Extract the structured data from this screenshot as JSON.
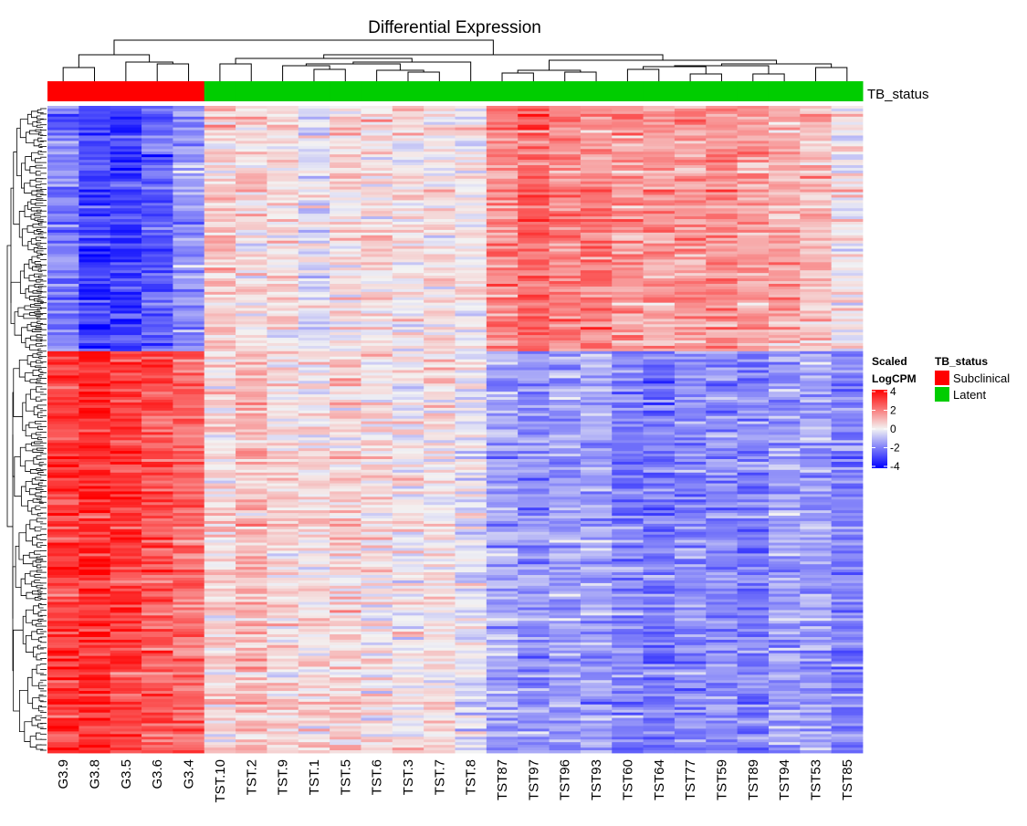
{
  "chart_data": {
    "type": "heatmap",
    "title": "Differential Expression",
    "annotation_label": "TB_status",
    "columns": [
      "G3.9",
      "G3.8",
      "G3.5",
      "G3.6",
      "G3.4",
      "TST.10",
      "TST.2",
      "TST.9",
      "TST.1",
      "TST.5",
      "TST.6",
      "TST.3",
      "TST.7",
      "TST.8",
      "TST87",
      "TST97",
      "TST96",
      "TST93",
      "TST60",
      "TST64",
      "TST77",
      "TST59",
      "TST89",
      "TST94",
      "TST53",
      "TST85"
    ],
    "column_status": [
      "Subclinical",
      "Subclinical",
      "Subclinical",
      "Subclinical",
      "Subclinical",
      "Latent",
      "Latent",
      "Latent",
      "Latent",
      "Latent",
      "Latent",
      "Latent",
      "Latent",
      "Latent",
      "Latent",
      "Latent",
      "Latent",
      "Latent",
      "Latent",
      "Latent",
      "Latent",
      "Latent",
      "Latent",
      "Latent",
      "Latent",
      "Latent"
    ],
    "row_blocks": [
      {
        "share": 0.38,
        "mean_values": [
          -2.0,
          -3.0,
          -3.0,
          -2.5,
          -1.5,
          0.8,
          0.4,
          0.3,
          -0.3,
          0.3,
          0.4,
          0.2,
          0.3,
          0.0,
          1.8,
          2.3,
          1.8,
          1.8,
          1.6,
          1.4,
          1.6,
          1.6,
          1.4,
          1.2,
          0.9,
          0.2
        ]
      },
      {
        "share": 0.62,
        "mean_values": [
          3.0,
          3.3,
          2.9,
          2.6,
          2.3,
          0.4,
          0.9,
          0.5,
          0.3,
          0.5,
          0.3,
          0.1,
          0.3,
          -0.2,
          -1.2,
          -1.6,
          -1.3,
          -1.3,
          -1.9,
          -2.0,
          -1.7,
          -1.7,
          -1.9,
          -1.4,
          -1.3,
          -1.8
        ]
      }
    ],
    "color_legend": {
      "title_line1": "Scaled",
      "title_line2": "LogCPM",
      "ticks": [
        4,
        2,
        0,
        -2,
        -4
      ],
      "range": [
        -4,
        4
      ],
      "colors": {
        "low": "#0000ff",
        "mid": "#f3f3f3",
        "high": "#ff0000"
      }
    },
    "status_legend": {
      "title": "TB_status",
      "items": [
        {
          "label": "Subclinical",
          "color": "#ff0000"
        },
        {
          "label": "Latent",
          "color": "#00cd00"
        }
      ]
    }
  }
}
